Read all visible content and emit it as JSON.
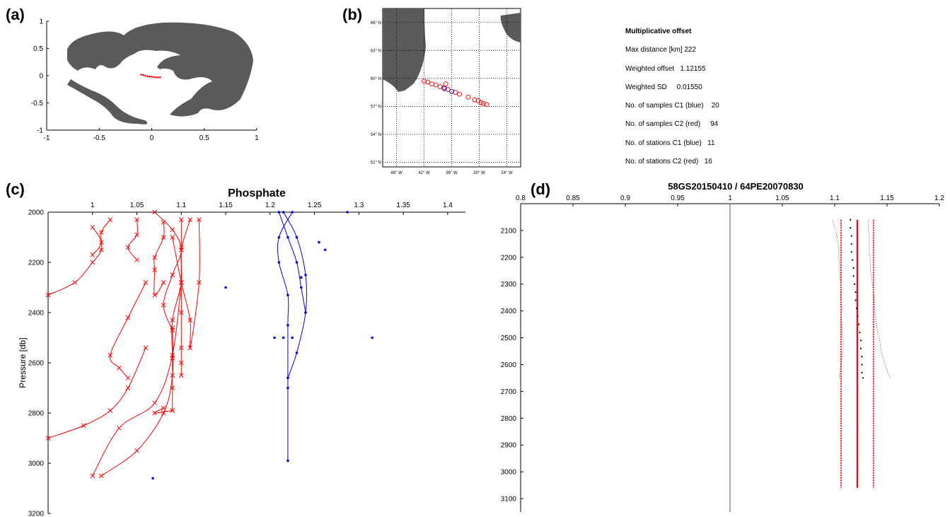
{
  "panels": {
    "a": {
      "label": "(a)"
    },
    "b": {
      "label": "(b)"
    },
    "c": {
      "label": "(c)"
    },
    "d": {
      "label": "(d)"
    }
  },
  "info": {
    "title": "Multiplicative offset",
    "rows": [
      {
        "label": "Max distance [km]",
        "value": "222"
      },
      {
        "label": "Weighted offset",
        "value": "1.12155"
      },
      {
        "label": "Weighted SD",
        "value": "0.01550"
      },
      {
        "label": "No. of samples   C1 (blue)",
        "value": "20"
      },
      {
        "label": "No. of samples   C2 (red)",
        "value": "94"
      },
      {
        "label": "No. of stations   C1 (blue)",
        "value": "11"
      },
      {
        "label": "No. of stations   C2 (red)",
        "value": "16"
      }
    ]
  },
  "colors": {
    "c1": "#0000dd",
    "c2": "#ff0000",
    "land": "#5a5a5a",
    "axis": "#000000"
  },
  "chart_data": [
    {
      "id": "a",
      "type": "scatter",
      "title": "",
      "xlim": [
        -1,
        1
      ],
      "ylim": [
        -1,
        1
      ],
      "xticks": [
        "-1",
        "-0.5",
        "0",
        "0.5",
        "1"
      ],
      "yticks": [
        "1",
        "0.5",
        "0",
        "-0.5",
        "-1"
      ],
      "series": [
        {
          "color": "#ff0000",
          "x": [
            -0.1,
            -0.08,
            -0.06,
            -0.04,
            -0.02,
            0.0,
            0.02,
            0.04,
            0.06,
            0.08
          ],
          "y": [
            0.02,
            0.01,
            0.0,
            -0.01,
            -0.015,
            -0.02,
            -0.025,
            -0.03,
            -0.03,
            -0.03
          ]
        }
      ]
    },
    {
      "id": "b",
      "type": "scatter",
      "title": "",
      "xticks": [
        "48° W",
        "42° W",
        "36° W",
        "30° W",
        "24° W"
      ],
      "yticks": [
        "66° N",
        "63° N",
        "60° N",
        "57° N",
        "54° N",
        "51° N"
      ],
      "xlim": [
        -51,
        -21
      ],
      "ylim": [
        50.5,
        67.5
      ],
      "series": [
        {
          "color": "#ff0000",
          "lon": [
            -42.0,
            -41.2,
            -40.3,
            -39.4,
            -38.5,
            -37.7,
            -36.8,
            -36.0,
            -35.2,
            -34.3,
            -32.4,
            -31.0,
            -30.2,
            -29.6,
            -29.1,
            -28.4,
            -37.3
          ],
          "lat": [
            59.7,
            59.6,
            59.4,
            59.3,
            59.1,
            59.0,
            58.8,
            58.6,
            58.5,
            58.3,
            58.0,
            57.7,
            57.6,
            57.4,
            57.3,
            57.2,
            59.4
          ]
        },
        {
          "color": "#0000dd",
          "lon": [
            -37.6,
            -36.0
          ],
          "lat": [
            58.9,
            58.6
          ]
        }
      ]
    },
    {
      "id": "c",
      "type": "line",
      "title": "Phosphate",
      "ylabel": "Pressure  [db]",
      "xlim": [
        0.95,
        1.42
      ],
      "ylim": [
        2000,
        3200
      ],
      "xticks": [
        "1",
        "1.05",
        "1.1",
        "1.15",
        "1.2",
        "1.25",
        "1.3",
        "1.35",
        "1.4"
      ],
      "yticks": [
        "2000",
        "2200",
        "2400",
        "2600",
        "2800",
        "3000",
        "3200"
      ],
      "series": [
        {
          "color": "#ff0000",
          "name": "",
          "points": [
            [
              1.02,
              2030
            ],
            [
              1.01,
              2080
            ],
            [
              1.01,
              2150
            ],
            [
              1.0,
              2200
            ],
            [
              0.98,
              2280
            ],
            [
              0.95,
              2330
            ]
          ]
        },
        {
          "color": "#ff0000",
          "name": "",
          "points": [
            [
              1.0,
              2060
            ],
            [
              1.01,
              2120
            ],
            [
              1.0,
              2170
            ]
          ]
        },
        {
          "color": "#ff0000",
          "name": "",
          "points": [
            [
              1.05,
              2030
            ],
            [
              1.05,
              2090
            ],
            [
              1.04,
              2140
            ],
            [
              1.05,
              2190
            ]
          ]
        },
        {
          "color": "#ff0000",
          "name": "",
          "points": [
            [
              1.08,
              2040
            ],
            [
              1.08,
              2100
            ],
            [
              1.07,
              2180
            ],
            [
              1.07,
              2230
            ],
            [
              1.07,
              2330
            ],
            [
              1.08,
              2280
            ]
          ]
        },
        {
          "color": "#ff0000",
          "name": "",
          "points": [
            [
              1.07,
              2000
            ],
            [
              1.09,
              2070
            ],
            [
              1.1,
              2150
            ],
            [
              1.09,
              2250
            ],
            [
              1.08,
              2370
            ],
            [
              1.09,
              2470
            ]
          ]
        },
        {
          "color": "#ff0000",
          "name": "",
          "points": [
            [
              1.1,
              2030
            ],
            [
              1.1,
              2140
            ],
            [
              1.1,
              2280
            ],
            [
              1.1,
              2400
            ],
            [
              1.1,
              2540
            ],
            [
              1.1,
              2600
            ],
            [
              1.1,
              2650
            ]
          ]
        },
        {
          "color": "#ff0000",
          "name": "",
          "points": [
            [
              1.11,
              2030
            ],
            [
              1.1,
              2150
            ],
            [
              1.1,
              2280
            ],
            [
              1.09,
              2430
            ],
            [
              1.09,
              2580
            ],
            [
              1.09,
              2700
            ],
            [
              1.09,
              2790
            ]
          ]
        },
        {
          "color": "#ff0000",
          "name": "",
          "points": [
            [
              1.09,
              2100
            ],
            [
              1.1,
              2280
            ],
            [
              1.11,
              2430
            ],
            [
              1.11,
              2540
            ],
            [
              1.12,
              2280
            ],
            [
              1.12,
              2030
            ]
          ]
        },
        {
          "color": "#ff0000",
          "name": "",
          "points": [
            [
              1.06,
              2280
            ],
            [
              1.04,
              2420
            ],
            [
              1.02,
              2570
            ],
            [
              1.03,
              2620
            ],
            [
              1.04,
              2660
            ]
          ]
        },
        {
          "color": "#ff0000",
          "name": "",
          "points": [
            [
              1.06,
              2540
            ],
            [
              1.04,
              2700
            ],
            [
              1.02,
              2790
            ],
            [
              0.99,
              2850
            ],
            [
              0.95,
              2900
            ]
          ]
        },
        {
          "color": "#ff0000",
          "name": "",
          "points": [
            [
              1.1,
              2280
            ],
            [
              1.09,
              2570
            ],
            [
              1.07,
              2760
            ],
            [
              1.03,
              2860
            ],
            [
              1.0,
              3050
            ]
          ]
        },
        {
          "color": "#ff0000",
          "name": "",
          "points": [
            [
              1.09,
              2460
            ],
            [
              1.09,
              2650
            ],
            [
              1.08,
              2800
            ],
            [
              1.05,
              2950
            ],
            [
              1.01,
              3050
            ]
          ]
        },
        {
          "color": "#ff0000",
          "name": "",
          "points": [
            [
              1.08,
              2780
            ],
            [
              1.07,
              2800
            ],
            [
              1.09,
              2790
            ]
          ]
        },
        {
          "color": "#0000dd",
          "name": "",
          "points": [
            [
              1.215,
              2000
            ],
            [
              1.23,
              2100
            ],
            [
              1.24,
              2250
            ],
            [
              1.24,
              2400
            ],
            [
              1.23,
              2560
            ],
            [
              1.22,
              2660
            ]
          ]
        },
        {
          "color": "#0000dd",
          "name": "",
          "points": [
            [
              1.225,
              2000
            ],
            [
              1.21,
              2100
            ],
            [
              1.21,
              2200
            ],
            [
              1.22,
              2330
            ],
            [
              1.22,
              2450
            ],
            [
              1.22,
              2700
            ],
            [
              1.22,
              2990
            ]
          ]
        },
        {
          "color": "#0000dd",
          "name": "",
          "points": [
            [
              1.21,
              2000
            ],
            [
              1.22,
              2100
            ],
            [
              1.23,
              2200
            ],
            [
              1.235,
              2300
            ],
            [
              1.24,
              2400
            ]
          ]
        }
      ],
      "points": [
        {
          "color": "#0000dd",
          "x": 1.15,
          "y": 2300
        },
        {
          "color": "#0000dd",
          "x": 1.205,
          "y": 2500
        },
        {
          "color": "#0000dd",
          "x": 1.215,
          "y": 2500
        },
        {
          "color": "#0000dd",
          "x": 1.225,
          "y": 2500
        },
        {
          "color": "#0000dd",
          "x": 1.255,
          "y": 2120
        },
        {
          "color": "#0000dd",
          "x": 1.262,
          "y": 2150
        },
        {
          "color": "#0000dd",
          "x": 1.287,
          "y": 2000
        },
        {
          "color": "#0000dd",
          "x": 1.315,
          "y": 2500
        },
        {
          "color": "#0000dd",
          "x": 1.068,
          "y": 3060
        },
        {
          "color": "#0000dd",
          "x": 1.235,
          "y": 2260
        }
      ]
    },
    {
      "id": "d",
      "type": "line",
      "title": "58GS20150410 / 64PE20070830",
      "xlim": [
        0.8,
        1.2
      ],
      "ylim": [
        2000,
        3150
      ],
      "xticks": [
        "0.8",
        "0.85",
        "0.9",
        "0.95",
        "1",
        "1.05",
        "1.1",
        "1.15",
        "1.2"
      ],
      "yticks": [
        "2100",
        "2200",
        "2300",
        "2400",
        "2500",
        "2600",
        "2700",
        "2800",
        "2900",
        "3000",
        "3100"
      ],
      "offset": 1.12155,
      "sd": 0.0155,
      "depth_range": [
        2060,
        3060
      ],
      "profile": {
        "pressure": [
          2060,
          2090,
          2120,
          2150,
          2180,
          2210,
          2240,
          2270,
          2300,
          2330,
          2360,
          2390,
          2420,
          2450,
          2480,
          2510,
          2540,
          2570,
          2600,
          2630,
          2650
        ],
        "mean": [
          1.115,
          1.115,
          1.116,
          1.116,
          1.116,
          1.117,
          1.118,
          1.118,
          1.119,
          1.12,
          1.12,
          1.121,
          1.122,
          1.123,
          1.124,
          1.125,
          1.125,
          1.126,
          1.126,
          1.126,
          1.127
        ],
        "lower": [
          1.098,
          1.1,
          1.102,
          1.103,
          1.104,
          1.104,
          1.105,
          1.105,
          1.106,
          1.106,
          1.106,
          1.107,
          1.106,
          1.107,
          1.107,
          1.108,
          1.108,
          1.107,
          1.106,
          1.105,
          1.104
        ],
        "upper": [
          1.132,
          1.132,
          1.133,
          1.133,
          1.133,
          1.134,
          1.134,
          1.135,
          1.136,
          1.137,
          1.138,
          1.138,
          1.139,
          1.14,
          1.141,
          1.143,
          1.144,
          1.146,
          1.148,
          1.151,
          1.153
        ]
      }
    }
  ]
}
